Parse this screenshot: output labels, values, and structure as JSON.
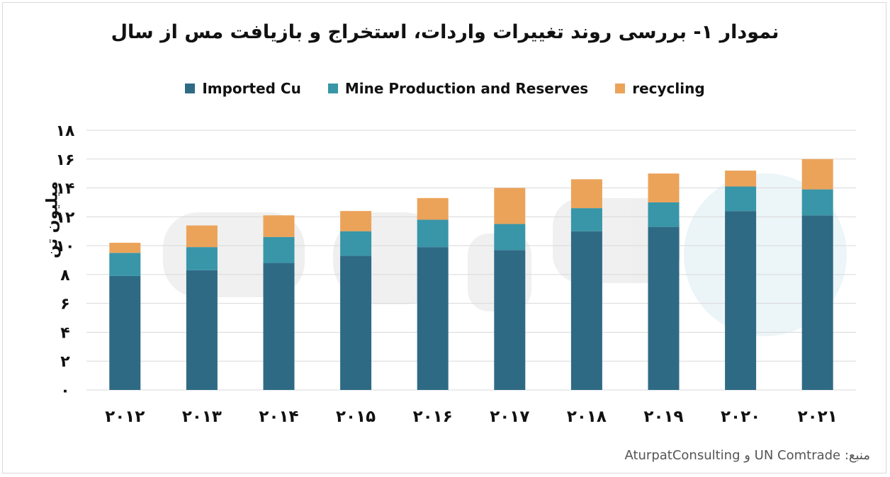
{
  "title": "نمودار ۱- بررسی روند تغییرات واردات، استخراج و بازیافت مس از سال",
  "source": "منبع: UN Comtrade و AturpatConsulting",
  "colors": {
    "imported": "#2f6a85",
    "mine": "#3896a8",
    "recycling": "#eba35a",
    "grid": "#d9d9d9"
  },
  "chart_data": {
    "type": "bar",
    "stacked": true,
    "title": "نمودار ۱- بررسی روند تغییرات واردات، استخراج و بازیافت مس از سال",
    "ylabel": "میلیون تن",
    "xlabel": "",
    "ylim": [
      0,
      18
    ],
    "yticks": [
      "۰",
      "۲",
      "۴",
      "۶",
      "۸",
      "۱۰",
      "۱۲",
      "۱۴",
      "۱۶",
      "۱۸"
    ],
    "ytick_values": [
      0,
      2,
      4,
      6,
      8,
      10,
      12,
      14,
      16,
      18
    ],
    "grid": true,
    "legend_position": "top",
    "categories": [
      "۲۰۱۲",
      "۲۰۱۳",
      "۲۰۱۴",
      "۲۰۱۵",
      "۲۰۱۶",
      "۲۰۱۷",
      "۲۰۱۸",
      "۲۰۱۹",
      "۲۰۲۰",
      "۲۰۲۱"
    ],
    "series": [
      {
        "name": "Imported Cu",
        "values": [
          7.9,
          8.3,
          8.8,
          9.3,
          9.9,
          9.7,
          11.0,
          11.3,
          12.4,
          12.1
        ]
      },
      {
        "name": "Mine Production and Reserves",
        "values": [
          1.6,
          1.6,
          1.8,
          1.7,
          1.9,
          1.8,
          1.6,
          1.7,
          1.7,
          1.8
        ]
      },
      {
        "name": "recycling",
        "values": [
          0.7,
          1.5,
          1.5,
          1.4,
          1.5,
          2.5,
          2.0,
          2.0,
          1.1,
          2.1
        ]
      }
    ]
  }
}
